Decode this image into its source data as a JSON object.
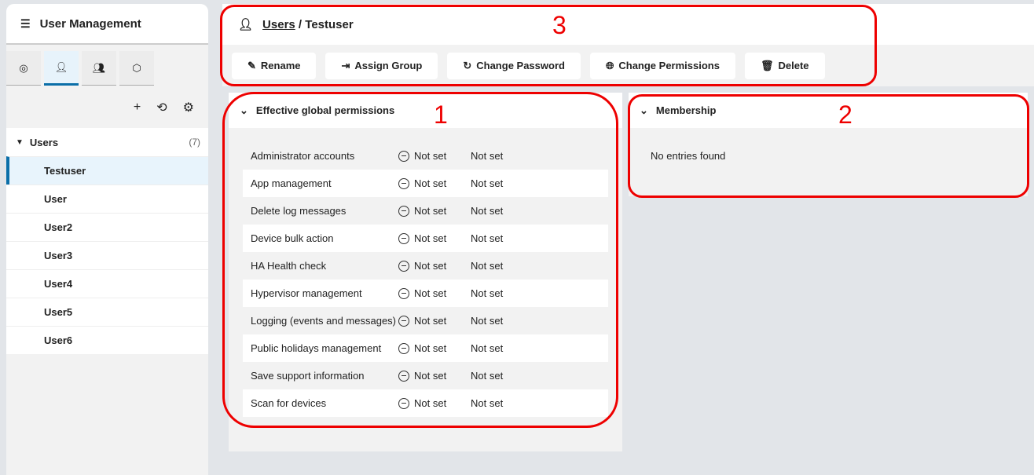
{
  "sidebar": {
    "title": "User Management",
    "tree": {
      "label": "Users",
      "count": "(7)",
      "items": [
        "Testuser",
        "User",
        "User2",
        "User3",
        "User4",
        "User5",
        "User6"
      ]
    }
  },
  "header": {
    "link": "Users",
    "sep": " / ",
    "current": "Testuser"
  },
  "toolbar": {
    "rename": "Rename",
    "assign": "Assign Group",
    "password": "Change Password",
    "perms": "Change Permissions",
    "delete": "Delete"
  },
  "permissions": {
    "title": "Effective global permissions",
    "rows": [
      {
        "name": "Administrator accounts",
        "a": "Not set",
        "b": "Not set"
      },
      {
        "name": "App management",
        "a": "Not set",
        "b": "Not set"
      },
      {
        "name": "Delete log messages",
        "a": "Not set",
        "b": "Not set"
      },
      {
        "name": "Device bulk action",
        "a": "Not set",
        "b": "Not set"
      },
      {
        "name": "HA Health check",
        "a": "Not set",
        "b": "Not set"
      },
      {
        "name": "Hypervisor management",
        "a": "Not set",
        "b": "Not set"
      },
      {
        "name": "Logging (events and messages)",
        "a": "Not set",
        "b": "Not set"
      },
      {
        "name": "Public holidays management",
        "a": "Not set",
        "b": "Not set"
      },
      {
        "name": "Save support information",
        "a": "Not set",
        "b": "Not set"
      },
      {
        "name": "Scan for devices",
        "a": "Not set",
        "b": "Not set"
      }
    ]
  },
  "membership": {
    "title": "Membership",
    "empty": "No entries found"
  },
  "annotations": [
    "1",
    "2",
    "3"
  ],
  "colors": {
    "accent": "#0a6ea8",
    "annotation": "#e00000"
  }
}
